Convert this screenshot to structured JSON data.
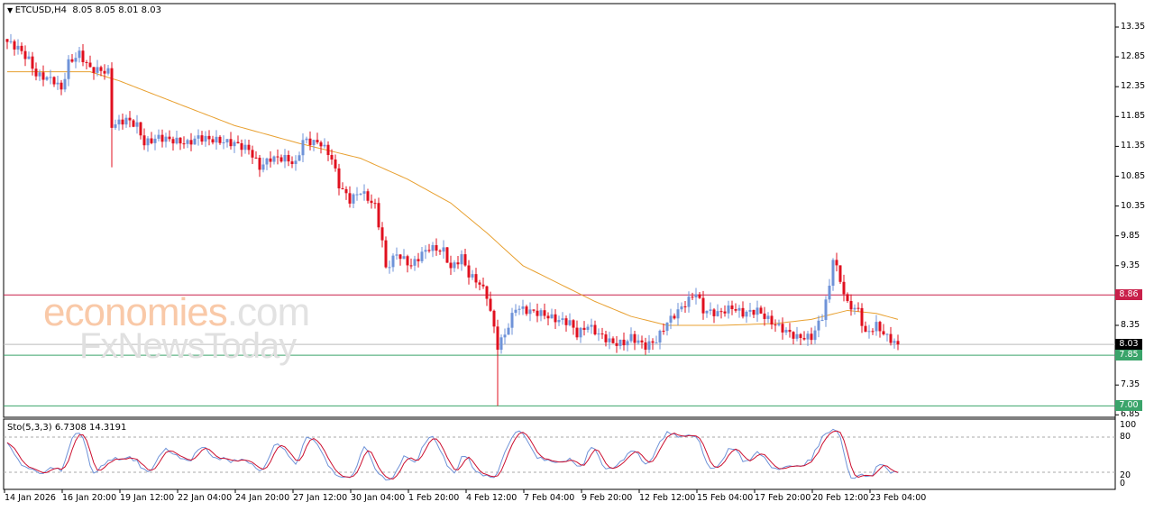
{
  "header": {
    "symbol": "ETCUSD,H4",
    "ohlc": "8.05 8.05 8.01 8.03"
  },
  "watermark": {
    "brand1": "economies",
    "brand1_suffix": ".com",
    "brand2": "FxNewsToday"
  },
  "colors": {
    "bull": "#6f93d8",
    "bear": "#e0101f",
    "ma": "#e8a030",
    "resistance": "#c8204a",
    "support": "#3aa46a",
    "current": "#000000",
    "sto_main": "#6f93d8",
    "sto_signal": "#cc1030"
  },
  "chart_data": {
    "type": "candlestick",
    "title": "ETCUSD,H4",
    "ylim": [
      6.85,
      13.35
    ],
    "yticks": [
      "13.35",
      "12.85",
      "12.35",
      "11.85",
      "11.35",
      "10.85",
      "10.35",
      "9.85",
      "9.35",
      "8.35",
      "7.35",
      "6.85"
    ],
    "xticks": [
      "14 Jan 2026",
      "16 Jan 20:00",
      "19 Jan 12:00",
      "22 Jan 04:00",
      "24 Jan 20:00",
      "27 Jan 12:00",
      "30 Jan 04:00",
      "1 Feb 20:00",
      "4 Feb 12:00",
      "7 Feb 04:00",
      "9 Feb 20:00",
      "12 Feb 12:00",
      "15 Feb 04:00",
      "17 Feb 20:00",
      "20 Feb 12:00",
      "23 Feb 04:00"
    ],
    "close_path": [
      [
        0,
        13.1
      ],
      [
        3,
        13.0
      ],
      [
        6,
        12.8
      ],
      [
        8,
        12.55
      ],
      [
        11,
        12.5
      ],
      [
        13,
        12.45
      ],
      [
        15,
        12.3
      ],
      [
        17,
        12.75
      ],
      [
        20,
        12.9
      ],
      [
        23,
        12.65
      ],
      [
        28,
        12.6
      ],
      [
        29,
        11.7
      ],
      [
        33,
        11.8
      ],
      [
        36,
        11.7
      ],
      [
        38,
        11.4
      ],
      [
        42,
        11.5
      ],
      [
        46,
        11.45
      ],
      [
        50,
        11.4
      ],
      [
        53,
        11.5
      ],
      [
        58,
        11.45
      ],
      [
        63,
        11.4
      ],
      [
        67,
        11.3
      ],
      [
        70,
        11.0
      ],
      [
        73,
        11.15
      ],
      [
        77,
        11.15
      ],
      [
        80,
        11.05
      ],
      [
        82,
        11.45
      ],
      [
        87,
        11.4
      ],
      [
        90,
        11.15
      ],
      [
        92,
        10.7
      ],
      [
        95,
        10.45
      ],
      [
        98,
        10.6
      ],
      [
        102,
        10.35
      ],
      [
        104,
        9.75
      ],
      [
        105,
        9.3
      ],
      [
        108,
        9.55
      ],
      [
        112,
        9.35
      ],
      [
        115,
        9.55
      ],
      [
        117,
        9.65
      ],
      [
        121,
        9.6
      ],
      [
        123,
        9.3
      ],
      [
        126,
        9.5
      ],
      [
        128,
        9.2
      ],
      [
        131,
        9.05
      ],
      [
        133,
        8.85
      ],
      [
        135,
        8.3
      ],
      [
        136,
        8.0
      ],
      [
        138,
        8.2
      ],
      [
        141,
        8.65
      ],
      [
        144,
        8.6
      ],
      [
        148,
        8.55
      ],
      [
        152,
        8.45
      ],
      [
        156,
        8.4
      ],
      [
        158,
        8.2
      ],
      [
        161,
        8.35
      ],
      [
        164,
        8.2
      ],
      [
        168,
        8.05
      ],
      [
        171,
        8.05
      ],
      [
        173,
        8.15
      ],
      [
        177,
        8.0
      ],
      [
        180,
        8.1
      ],
      [
        183,
        8.4
      ],
      [
        187,
        8.65
      ],
      [
        191,
        8.9
      ],
      [
        193,
        8.6
      ],
      [
        197,
        8.55
      ],
      [
        201,
        8.65
      ],
      [
        204,
        8.55
      ],
      [
        208,
        8.6
      ],
      [
        212,
        8.4
      ],
      [
        216,
        8.25
      ],
      [
        219,
        8.15
      ],
      [
        223,
        8.15
      ],
      [
        226,
        8.5
      ],
      [
        228,
        9.0
      ],
      [
        229,
        9.5
      ],
      [
        231,
        9.1
      ],
      [
        233,
        8.7
      ],
      [
        236,
        8.6
      ],
      [
        238,
        8.2
      ],
      [
        241,
        8.35
      ],
      [
        244,
        8.15
      ],
      [
        247,
        8.03
      ]
    ],
    "ma_path": [
      [
        0,
        12.6
      ],
      [
        23,
        12.6
      ],
      [
        31,
        12.45
      ],
      [
        48,
        12.05
      ],
      [
        63,
        11.7
      ],
      [
        81,
        11.4
      ],
      [
        98,
        11.15
      ],
      [
        111,
        10.8
      ],
      [
        123,
        10.4
      ],
      [
        133,
        9.9
      ],
      [
        143,
        9.35
      ],
      [
        153,
        9.05
      ],
      [
        163,
        8.75
      ],
      [
        173,
        8.5
      ],
      [
        183,
        8.35
      ],
      [
        198,
        8.35
      ],
      [
        213,
        8.38
      ],
      [
        223,
        8.45
      ],
      [
        233,
        8.6
      ],
      [
        241,
        8.55
      ],
      [
        247,
        8.45
      ]
    ],
    "levels": [
      {
        "label": "8.86",
        "value": 8.86,
        "kind": "resistance"
      },
      {
        "label": "8.03",
        "value": 8.03,
        "kind": "current"
      },
      {
        "label": "7.85",
        "value": 7.85,
        "kind": "support"
      },
      {
        "label": "7.00",
        "value": 7.0,
        "kind": "support"
      }
    ],
    "indicator": {
      "name": "Sto(5,3,3)",
      "main": "6.7308",
      "signal": "14.3191",
      "levels": [
        "100",
        "80",
        "20",
        "0"
      ]
    }
  }
}
